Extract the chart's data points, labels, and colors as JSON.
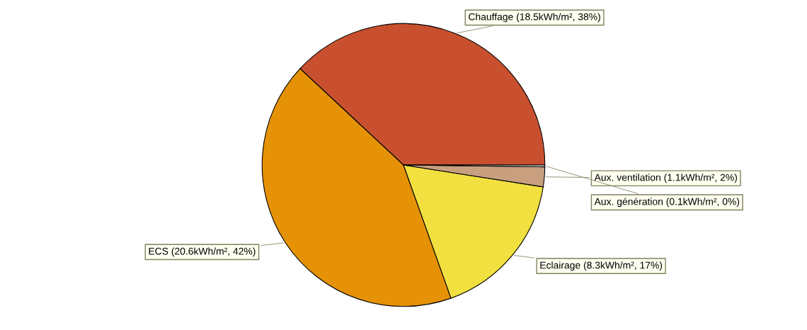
{
  "chart_data": {
    "type": "pie",
    "categories": [
      "Chauffage (18.5kWh/m², 38%)",
      "ECS (20.6kWh/m², 42%)",
      "Eclairage (8.3kWh/m², 17%)",
      "Aux. ventilation (1.1kWh/m², 2%)",
      "Aux. génération (0.1kWh/m², 0%)"
    ],
    "values": [
      18.5,
      20.6,
      8.3,
      1.1,
      0.1
    ],
    "colors": [
      "#c8502e",
      "#e59207",
      "#f2e040",
      "#c8a080",
      "#d8d8d8"
    ],
    "legend": false
  }
}
